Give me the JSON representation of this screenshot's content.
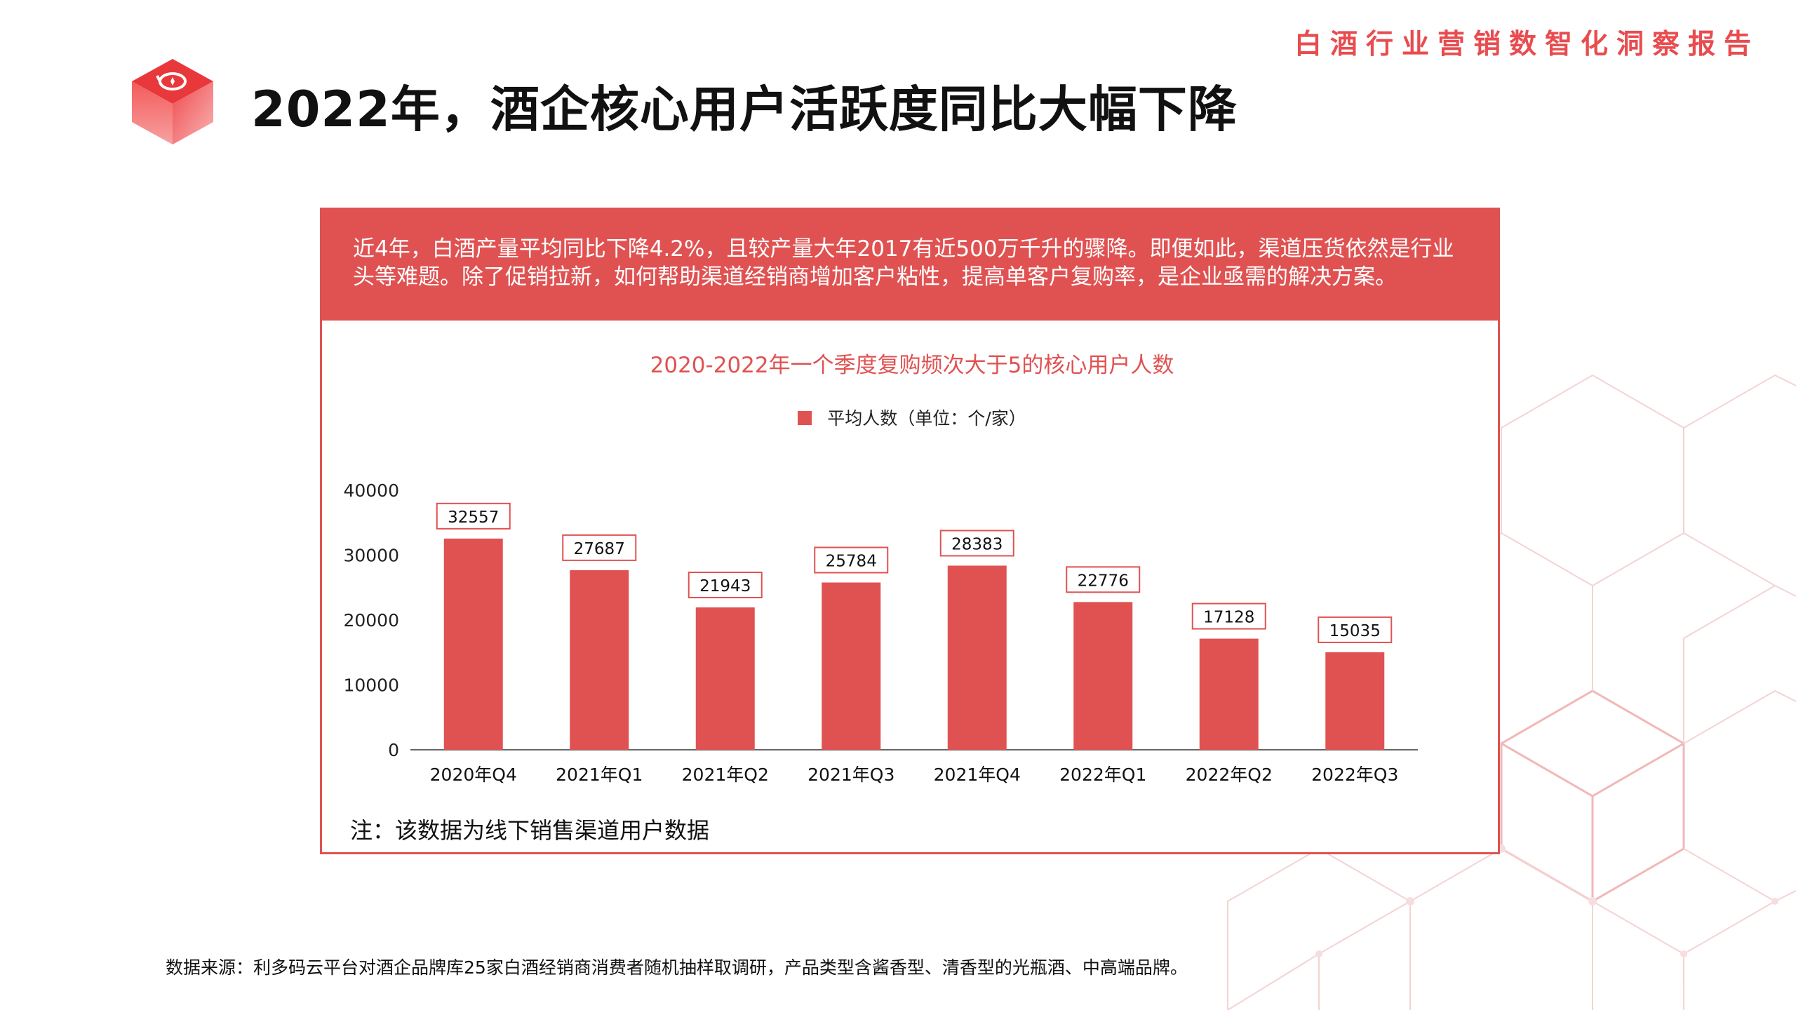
{
  "header": {
    "report_title": "白酒行业营销数智化洞察报告"
  },
  "page": {
    "title": "2022年，酒企核心用户活跃度同比大幅下降"
  },
  "card": {
    "banner_text": "近4年，白酒产量平均同比下降4.2%，且较产量大年2017有近500万千升的骤降。即便如此，渠道压货依然是行业头等难题。除了促销拉新，如何帮助渠道经销商增加客户粘性，提高单客户复购率，是企业亟需的解决方案。",
    "note": "注：该数据为线下销售渠道用户数据"
  },
  "footer": {
    "source": "数据来源：利多码云平台对酒企品牌库25家白酒经销商消费者随机抽样取调研，产品类型含酱香型、清香型的光瓶酒、中高端品牌。"
  },
  "chart_data": {
    "type": "bar",
    "title": "2020-2022年一个季度复购频次大于5的核心用户人数",
    "legend": "平均人数（单位：个/家）",
    "categories": [
      "2020年Q4",
      "2021年Q1",
      "2021年Q2",
      "2021年Q3",
      "2021年Q4",
      "2022年Q1",
      "2022年Q2",
      "2022年Q3"
    ],
    "series": [
      {
        "name": "平均人数（单位：个/家）",
        "values": [
          32557,
          27687,
          21943,
          25784,
          28383,
          22776,
          17128,
          15035
        ]
      }
    ],
    "y_ticks": [
      0,
      10000,
      20000,
      30000,
      40000
    ],
    "ylim": [
      0,
      40000
    ],
    "bar_color": "#e05252",
    "xlabel": "",
    "ylabel": ""
  },
  "colors": {
    "accent": "#e05252",
    "title_red": "#e84c4f"
  }
}
